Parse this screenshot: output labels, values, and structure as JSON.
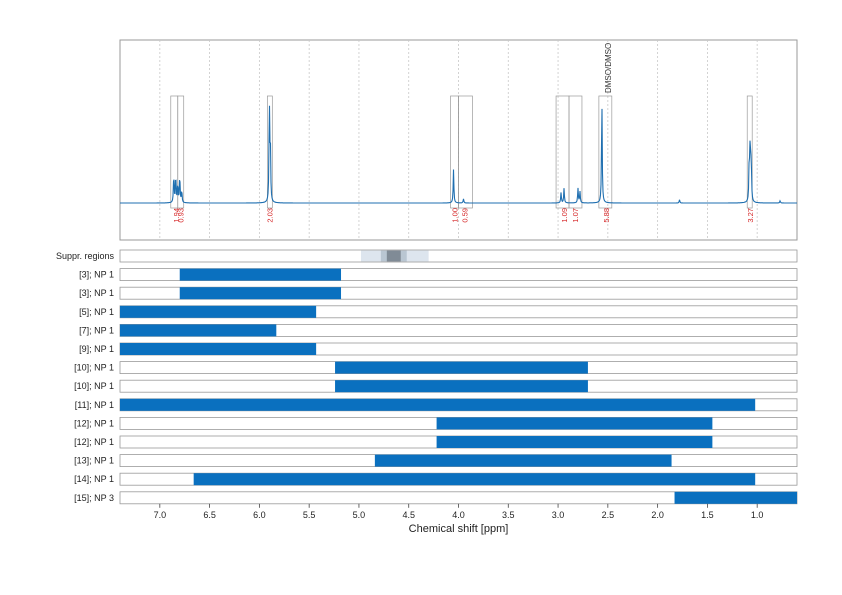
{
  "chart_data": {
    "type": "nmr-spectrum-with-ranges",
    "xlabel": "Chemical shift [ppm]",
    "xlim": [
      7.4,
      0.6
    ],
    "x_ticks": [
      "7.0",
      "6.5",
      "6.0",
      "5.5",
      "5.0",
      "4.5",
      "4.0",
      "3.5",
      "3.0",
      "2.5",
      "2.0",
      "1.5",
      "1.0"
    ],
    "x_tick_values": [
      7.0,
      6.5,
      6.0,
      5.5,
      5.0,
      4.5,
      4.0,
      3.5,
      3.0,
      2.5,
      2.0,
      1.5,
      1.0
    ],
    "colors": {
      "spectrum": "#1f6fb0",
      "bar": "#0a70bf",
      "integral_label": "#d62728",
      "grid": "#c8c8c8",
      "box": "#9a9a9a"
    },
    "spectrum": {
      "annotation": "DMSO/DMSO",
      "annotation_x": 2.5,
      "integrals": [
        {
          "ppm": 6.84,
          "label": "1.94"
        },
        {
          "ppm": 6.79,
          "label": "0.93"
        },
        {
          "ppm": 5.9,
          "label": "2.03"
        },
        {
          "ppm": 4.04,
          "label": "1.00"
        },
        {
          "ppm": 3.94,
          "label": "0.59"
        },
        {
          "ppm": 2.94,
          "label": "1.09"
        },
        {
          "ppm": 2.83,
          "label": "1.07"
        },
        {
          "ppm": 2.52,
          "label": "5.88"
        },
        {
          "ppm": 1.07,
          "label": "3.27"
        }
      ],
      "peaks": [
        {
          "ppm": 6.86,
          "height": 0.28
        },
        {
          "ppm": 6.84,
          "height": 0.27
        },
        {
          "ppm": 6.82,
          "height": 0.18
        },
        {
          "ppm": 6.8,
          "height": 0.27
        },
        {
          "ppm": 6.78,
          "height": 0.12
        },
        {
          "ppm": 5.9,
          "height": 0.96
        },
        {
          "ppm": 5.89,
          "height": 0.55
        },
        {
          "ppm": 4.05,
          "height": 0.32
        },
        {
          "ppm": 3.95,
          "height": 0.04
        },
        {
          "ppm": 2.97,
          "height": 0.1
        },
        {
          "ppm": 2.94,
          "height": 0.14
        },
        {
          "ppm": 2.8,
          "height": 0.14
        },
        {
          "ppm": 2.78,
          "height": 0.11
        },
        {
          "ppm": 2.56,
          "height": 1.0
        },
        {
          "ppm": 1.78,
          "height": 0.03
        },
        {
          "ppm": 1.08,
          "height": 0.4
        },
        {
          "ppm": 1.07,
          "height": 0.6
        },
        {
          "ppm": 1.06,
          "height": 0.4
        },
        {
          "ppm": 0.77,
          "height": 0.02
        }
      ],
      "region_boxes": [
        [
          6.89,
          6.82
        ],
        [
          6.82,
          6.76
        ],
        [
          5.92,
          5.87
        ],
        [
          4.08,
          4.0
        ],
        [
          4.0,
          3.86
        ],
        [
          3.02,
          2.89
        ],
        [
          2.89,
          2.76
        ],
        [
          2.59,
          2.46
        ],
        [
          1.1,
          1.05
        ]
      ]
    },
    "suppressed_regions": {
      "label": "Suppr. regions",
      "bands": [
        {
          "from": 4.98,
          "to": 4.3,
          "shade": "#dde5ee"
        },
        {
          "from": 4.78,
          "to": 4.52,
          "shade": "#b9c6d2"
        },
        {
          "from": 4.72,
          "to": 4.58,
          "shade": "#808b96"
        }
      ]
    },
    "ranges": [
      {
        "label": "[3]; NP 1",
        "from": 6.8,
        "to": 5.18
      },
      {
        "label": "[3]; NP 1",
        "from": 6.8,
        "to": 5.18
      },
      {
        "label": "[5]; NP 1",
        "from": 7.4,
        "to": 5.43
      },
      {
        "label": "[7]; NP 1",
        "from": 7.4,
        "to": 5.83
      },
      {
        "label": "[9]; NP 1",
        "from": 7.4,
        "to": 5.43
      },
      {
        "label": "[10]; NP 1",
        "from": 5.24,
        "to": 2.7
      },
      {
        "label": "[10]; NP 1",
        "from": 5.24,
        "to": 2.7
      },
      {
        "label": "[11]; NP 1",
        "from": 7.4,
        "to": 1.02
      },
      {
        "label": "[12]; NP 1",
        "from": 4.22,
        "to": 1.45
      },
      {
        "label": "[12]; NP 1",
        "from": 4.22,
        "to": 1.45
      },
      {
        "label": "[13]; NP 1",
        "from": 4.84,
        "to": 1.86
      },
      {
        "label": "[14]; NP 1",
        "from": 6.66,
        "to": 1.02
      },
      {
        "label": "[15]; NP 3",
        "from": 1.83,
        "to": 0.6
      }
    ]
  }
}
